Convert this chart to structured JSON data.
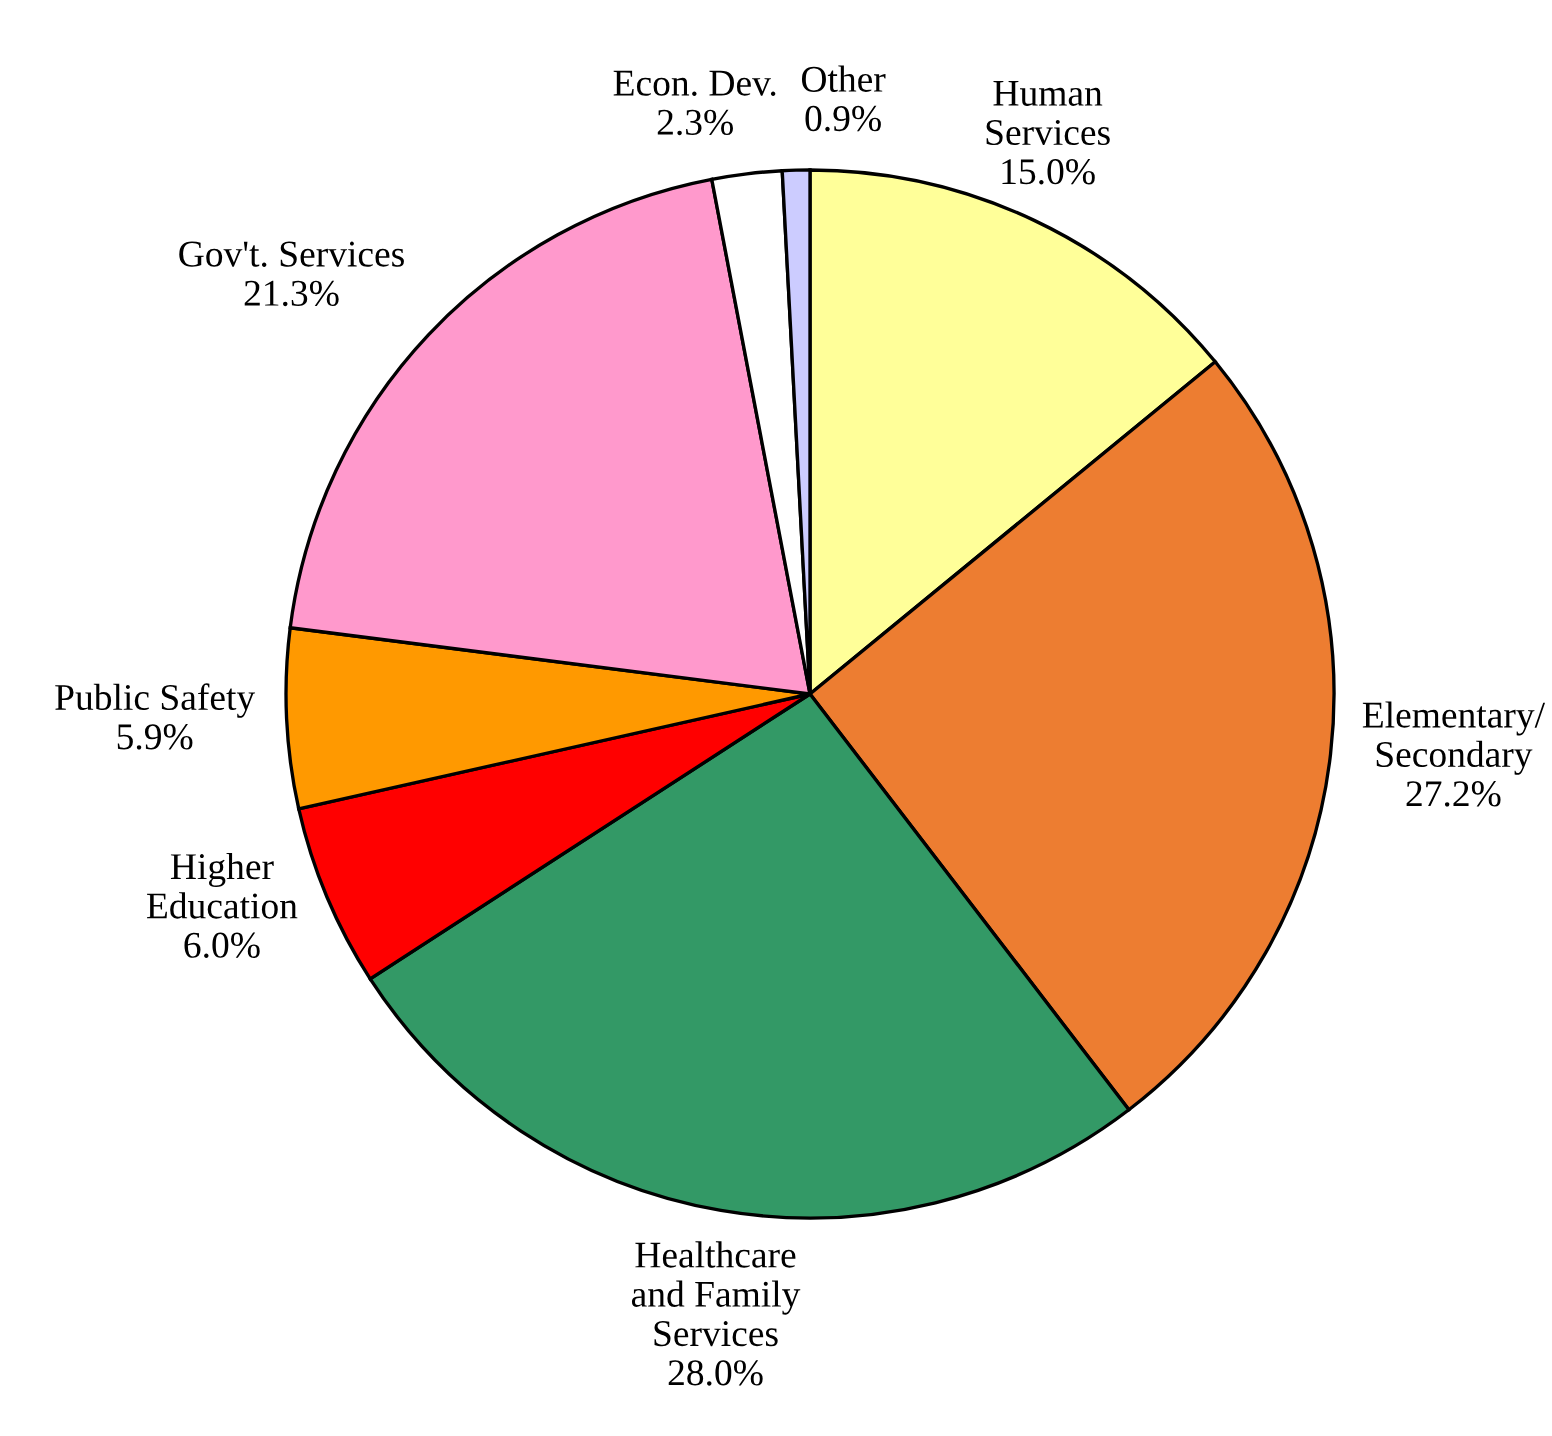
{
  "chart_data": {
    "type": "pie",
    "categories": [
      "Human\nServices",
      "Elementary/\nSecondary",
      "Healthcare\nand Family\nServices",
      "Higher\nEducation",
      "Public Safety",
      "Gov't. Services",
      "Econ. Dev.",
      "Other"
    ],
    "values": [
      15.0,
      27.2,
      28.0,
      6.0,
      5.9,
      21.3,
      2.3,
      0.9
    ],
    "value_labels": [
      "15.0%",
      "27.2%",
      "28.0%",
      "6.0%",
      "5.9%",
      "21.3%",
      "2.3%",
      "0.9%"
    ],
    "colors": [
      "#ffff99",
      "#ed7d31",
      "#339966",
      "#ff0000",
      "#ff9900",
      "#ff99cc",
      "#ffffff",
      "#ccccff"
    ],
    "legend": false
  }
}
